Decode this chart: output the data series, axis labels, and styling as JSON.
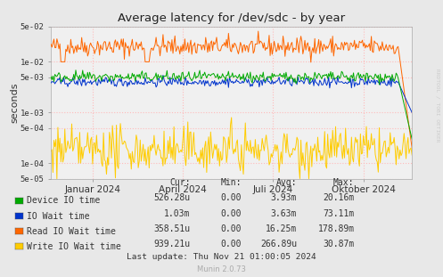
{
  "title": "Average latency for /dev/sdc - by year",
  "ylabel": "seconds",
  "xlabel_ticks": [
    "Januar 2024",
    "April 2024",
    "Juli 2024",
    "Oktober 2024"
  ],
  "xlabel_tick_positions": [
    0.115,
    0.365,
    0.615,
    0.865
  ],
  "ylim_log": [
    5e-05,
    0.05
  ],
  "background_color": "#e8e8e8",
  "plot_bg_color": "#f0f0f0",
  "grid_color_x": "#ffbbbb",
  "grid_color_y": "#ffbbbb",
  "colors": {
    "device_io": "#00aa00",
    "io_wait": "#0033cc",
    "read_io_wait": "#ff6600",
    "write_io_wait": "#ffcc00"
  },
  "legend_entries": [
    {
      "label": "Device IO time",
      "color": "#00aa00"
    },
    {
      "label": "IO Wait time",
      "color": "#0033cc"
    },
    {
      "label": "Read IO Wait time",
      "color": "#ff6600"
    },
    {
      "label": "Write IO Wait time",
      "color": "#ffcc00"
    }
  ],
  "legend_cols": [
    "Cur:",
    "Min:",
    "Avg:",
    "Max:"
  ],
  "legend_data": [
    [
      "526.28u",
      "0.00",
      "3.93m",
      "20.16m"
    ],
    [
      "1.03m",
      "0.00",
      "3.63m",
      "73.11m"
    ],
    [
      "358.51u",
      "0.00",
      "16.25m",
      "178.89m"
    ],
    [
      "939.21u",
      "0.00",
      "266.89u",
      "30.87m"
    ]
  ],
  "last_update": "Last update: Thu Nov 21 01:00:05 2024",
  "munin_version": "Munin 2.0.73",
  "watermark": "RRDTOOL / TOBI OETIKER",
  "n_points": 365,
  "seed": 42
}
